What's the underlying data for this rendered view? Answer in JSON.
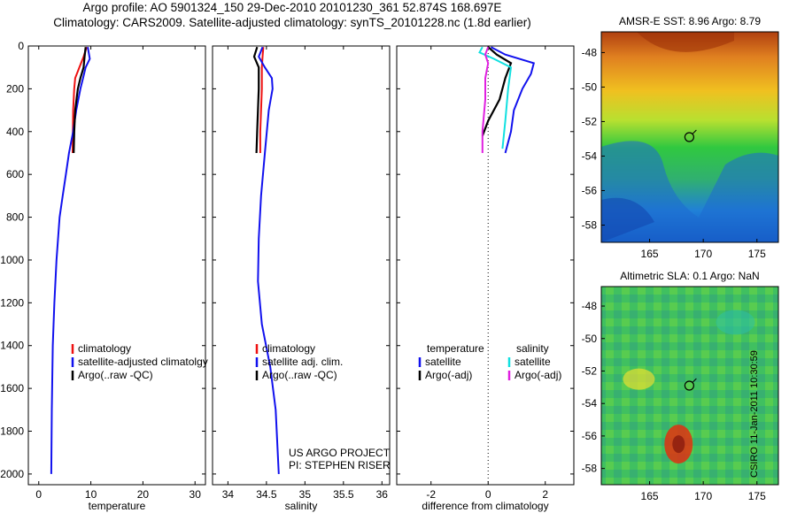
{
  "title": {
    "line1": "Argo profile: AO 5901324_150 29-Dec-2010 20101230_361 52.874S 168.697E",
    "line2": "Climatology: CARS2009. Satellite-adjusted climatology: synTS_20101228.nc (1.8d earlier)"
  },
  "side_label": "CSIRO 11-Jan-2011 10:30:59",
  "colors": {
    "climatology": "#ee1111",
    "satellite": "#1111ee",
    "argo": "#000000",
    "cyan": "#11e0e0",
    "magenta": "#e020e0"
  },
  "chart_data": [
    {
      "type": "line",
      "xlabel": "temperature",
      "xlim": [
        -2,
        32
      ],
      "ylim": [
        0,
        2050
      ],
      "xticks": [
        0,
        10,
        20,
        30
      ],
      "yticks": [
        0,
        200,
        400,
        600,
        800,
        1000,
        1200,
        1400,
        1600,
        1800,
        2000
      ],
      "series": [
        {
          "name": "climatology",
          "color": "#ee1111",
          "x": [
            9.2,
            8.6,
            7.8,
            7.0,
            6.8,
            6.6,
            6.5
          ],
          "y": [
            5,
            50,
            100,
            150,
            200,
            300,
            500
          ]
        },
        {
          "name": "satellite-adjusted climatology",
          "color": "#1111ee",
          "x": [
            9.4,
            9.8,
            9.0,
            8.5,
            8.0,
            7.2,
            6.6,
            5.8,
            5.2,
            4.6,
            4.0,
            3.4,
            3.0,
            2.7,
            2.5,
            2.4
          ],
          "y": [
            5,
            60,
            100,
            150,
            200,
            300,
            400,
            500,
            600,
            700,
            800,
            1000,
            1200,
            1400,
            1700,
            2000
          ]
        },
        {
          "name": "Argo(..raw -QC)",
          "color": "#000000",
          "x": [
            9.0,
            8.8,
            8.6,
            8.0,
            7.5,
            7.0,
            6.8,
            6.7
          ],
          "y": [
            5,
            50,
            100,
            150,
            200,
            300,
            400,
            500
          ]
        }
      ],
      "legend": [
        "climatology",
        "satellite-adjusted climatolgy",
        "Argo(..raw -QC)"
      ]
    },
    {
      "type": "line",
      "xlabel": "salinity",
      "xlim": [
        33.8,
        36.1
      ],
      "ylim": [
        0,
        2050
      ],
      "xticks": [
        34,
        34.5,
        35,
        35.5,
        36
      ],
      "series": [
        {
          "name": "climatology",
          "color": "#ee1111",
          "x": [
            34.46,
            34.45,
            34.44,
            34.44,
            34.43,
            34.42,
            34.42
          ],
          "y": [
            5,
            50,
            100,
            200,
            300,
            400,
            500
          ]
        },
        {
          "name": "satellite adj. clim.",
          "color": "#1111ee",
          "x": [
            34.45,
            34.4,
            34.48,
            34.57,
            34.58,
            34.53,
            34.48,
            34.43,
            34.4,
            34.39,
            34.44,
            34.55,
            34.62,
            34.66
          ],
          "y": [
            5,
            50,
            100,
            150,
            200,
            300,
            500,
            700,
            900,
            1100,
            1300,
            1500,
            1700,
            2000
          ]
        },
        {
          "name": "Argo(..raw -QC)",
          "color": "#000000",
          "x": [
            34.38,
            34.34,
            34.4,
            34.4,
            34.39,
            34.38,
            34.37
          ],
          "y": [
            5,
            50,
            100,
            200,
            300,
            400,
            500
          ]
        }
      ],
      "legend": [
        "climatology",
        "satellite adj. clim.",
        "Argo(..raw -QC)"
      ],
      "annotation": [
        "US ARGO PROJECT",
        "PI: STEPHEN RISER"
      ]
    },
    {
      "type": "line",
      "xlabel": "difference from climatology",
      "xlim": [
        -3.2,
        3.0
      ],
      "ylim": [
        0,
        2050
      ],
      "xticks": [
        -2,
        0,
        2
      ],
      "series": [
        {
          "name": "satellite",
          "color": "#1111ee",
          "x": [
            0.1,
            0.6,
            1.6,
            1.5,
            1.2,
            0.9,
            0.8,
            0.6
          ],
          "y": [
            5,
            40,
            80,
            130,
            200,
            300,
            400,
            500
          ]
        },
        {
          "name": "Argo(-adj)",
          "color": "#000000",
          "x": [
            0.0,
            0.3,
            0.8,
            0.6,
            0.4,
            0.0,
            -0.2
          ],
          "y": [
            5,
            40,
            80,
            150,
            250,
            350,
            420
          ]
        },
        {
          "name": "satellite",
          "color": "#11e0e0",
          "x": [
            -0.2,
            -0.3,
            0.2,
            0.8,
            0.7,
            0.6,
            0.5
          ],
          "y": [
            5,
            30,
            60,
            100,
            200,
            350,
            480
          ]
        },
        {
          "name": "Argo(-adj)",
          "color": "#e020e0",
          "x": [
            0.0,
            -0.1,
            0.0,
            -0.1,
            -0.1,
            -0.2,
            -0.2
          ],
          "y": [
            5,
            40,
            80,
            150,
            250,
            400,
            500
          ]
        }
      ],
      "legend_headers": [
        "temperature",
        "salinity"
      ],
      "legend": [
        "satellite",
        "Argo(-adj)",
        "satellite",
        "Argo(-adj)"
      ]
    },
    {
      "type": "heatmap",
      "title": "AMSR-E SST: 8.96 Argo: 8.79",
      "xlim": [
        160.5,
        177
      ],
      "ylim": [
        -59,
        -46.8
      ],
      "xticks": [
        165,
        170,
        175
      ],
      "yticks": [
        -48,
        -50,
        -52,
        -54,
        -56,
        -58
      ],
      "float_position": [
        168.7,
        -52.9
      ]
    },
    {
      "type": "heatmap",
      "title": "Altimetric SLA: 0.1 Argo: NaN",
      "xlim": [
        160.5,
        177
      ],
      "ylim": [
        -59,
        -46.8
      ],
      "xticks": [
        165,
        170,
        175
      ],
      "yticks": [
        -48,
        -50,
        -52,
        -54,
        -56,
        -58
      ],
      "float_position": [
        168.7,
        -52.9
      ]
    }
  ]
}
